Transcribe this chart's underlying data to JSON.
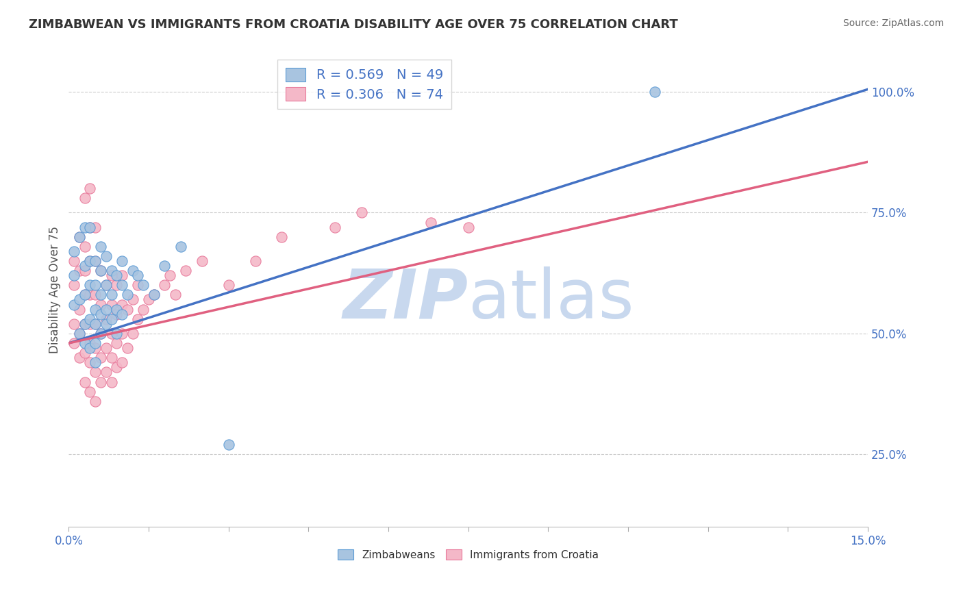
{
  "title": "ZIMBABWEAN VS IMMIGRANTS FROM CROATIA DISABILITY AGE OVER 75 CORRELATION CHART",
  "source": "Source: ZipAtlas.com",
  "ylabel": "Disability Age Over 75",
  "xlim": [
    0.0,
    0.15
  ],
  "ylim": [
    0.1,
    1.08
  ],
  "xticks": [
    0.0,
    0.015,
    0.03,
    0.045,
    0.06,
    0.075,
    0.09,
    0.105,
    0.12,
    0.135,
    0.15
  ],
  "ytick_labels": [
    "25.0%",
    "50.0%",
    "75.0%",
    "100.0%"
  ],
  "yticks": [
    0.25,
    0.5,
    0.75,
    1.0
  ],
  "blue_R": 0.569,
  "blue_N": 49,
  "pink_R": 0.306,
  "pink_N": 74,
  "blue_color": "#a8c4e0",
  "blue_edge_color": "#5b9bd5",
  "blue_line_color": "#4472c4",
  "pink_color": "#f4b8c8",
  "pink_edge_color": "#e8789a",
  "pink_line_color": "#e06080",
  "watermark_color": "#c8d8ee",
  "background_color": "#ffffff",
  "grid_color": "#cccccc",
  "title_color": "#333333",
  "source_color": "#666666",
  "label_color": "#4472c4",
  "blue_intercept": 0.48,
  "blue_slope": 3.5,
  "pink_intercept": 0.48,
  "pink_slope": 2.5,
  "blue_x": [
    0.001,
    0.001,
    0.001,
    0.002,
    0.002,
    0.002,
    0.003,
    0.003,
    0.003,
    0.003,
    0.003,
    0.004,
    0.004,
    0.004,
    0.004,
    0.004,
    0.005,
    0.005,
    0.005,
    0.005,
    0.005,
    0.005,
    0.006,
    0.006,
    0.006,
    0.006,
    0.006,
    0.007,
    0.007,
    0.007,
    0.007,
    0.008,
    0.008,
    0.008,
    0.009,
    0.009,
    0.009,
    0.01,
    0.01,
    0.01,
    0.011,
    0.012,
    0.013,
    0.014,
    0.016,
    0.018,
    0.021,
    0.03,
    0.11
  ],
  "blue_y": [
    0.56,
    0.62,
    0.67,
    0.5,
    0.57,
    0.7,
    0.48,
    0.52,
    0.58,
    0.64,
    0.72,
    0.47,
    0.53,
    0.6,
    0.65,
    0.72,
    0.44,
    0.48,
    0.52,
    0.55,
    0.6,
    0.65,
    0.5,
    0.54,
    0.58,
    0.63,
    0.68,
    0.52,
    0.55,
    0.6,
    0.66,
    0.53,
    0.58,
    0.63,
    0.5,
    0.55,
    0.62,
    0.54,
    0.6,
    0.65,
    0.58,
    0.63,
    0.62,
    0.6,
    0.58,
    0.64,
    0.68,
    0.27,
    1.0
  ],
  "pink_x": [
    0.001,
    0.001,
    0.001,
    0.001,
    0.002,
    0.002,
    0.002,
    0.002,
    0.002,
    0.003,
    0.003,
    0.003,
    0.003,
    0.003,
    0.003,
    0.003,
    0.004,
    0.004,
    0.004,
    0.004,
    0.004,
    0.004,
    0.004,
    0.004,
    0.005,
    0.005,
    0.005,
    0.005,
    0.005,
    0.005,
    0.005,
    0.006,
    0.006,
    0.006,
    0.006,
    0.006,
    0.007,
    0.007,
    0.007,
    0.007,
    0.008,
    0.008,
    0.008,
    0.008,
    0.008,
    0.009,
    0.009,
    0.009,
    0.009,
    0.01,
    0.01,
    0.01,
    0.01,
    0.011,
    0.011,
    0.012,
    0.012,
    0.013,
    0.013,
    0.014,
    0.015,
    0.016,
    0.018,
    0.019,
    0.02,
    0.022,
    0.025,
    0.03,
    0.035,
    0.04,
    0.05,
    0.055,
    0.068,
    0.075
  ],
  "pink_y": [
    0.48,
    0.52,
    0.6,
    0.65,
    0.45,
    0.5,
    0.55,
    0.63,
    0.7,
    0.4,
    0.46,
    0.52,
    0.58,
    0.63,
    0.68,
    0.78,
    0.38,
    0.44,
    0.48,
    0.52,
    0.58,
    0.65,
    0.72,
    0.8,
    0.36,
    0.42,
    0.47,
    0.52,
    0.58,
    0.65,
    0.72,
    0.4,
    0.45,
    0.5,
    0.56,
    0.63,
    0.42,
    0.47,
    0.53,
    0.6,
    0.4,
    0.45,
    0.5,
    0.56,
    0.62,
    0.43,
    0.48,
    0.54,
    0.6,
    0.44,
    0.5,
    0.56,
    0.62,
    0.47,
    0.55,
    0.5,
    0.57,
    0.53,
    0.6,
    0.55,
    0.57,
    0.58,
    0.6,
    0.62,
    0.58,
    0.63,
    0.65,
    0.6,
    0.65,
    0.7,
    0.72,
    0.75,
    0.73,
    0.72
  ]
}
